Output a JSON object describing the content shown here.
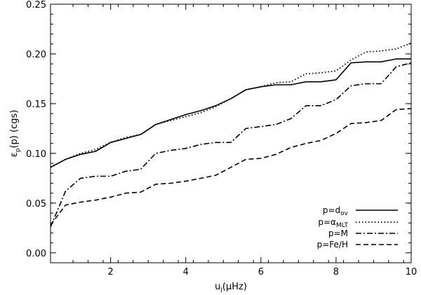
{
  "chart_data": {
    "type": "line",
    "title": "",
    "xlim": [
      0.4,
      10
    ],
    "ylim": [
      -0.01,
      0.25
    ],
    "x_ticks": [
      2,
      4,
      6,
      8,
      10
    ],
    "y_ticks": [
      0.0,
      0.05,
      0.1,
      0.15,
      0.2,
      0.25
    ],
    "x_tick_labels": [
      "2",
      "4",
      "6",
      "8",
      "10"
    ],
    "y_tick_labels": [
      "0.00",
      "0.05",
      "0.10",
      "0.15",
      "0.20",
      "0.25"
    ],
    "xlabel": {
      "base": "u",
      "sub": "l",
      "rest": "(μHz)"
    },
    "ylabel": {
      "base": "ε",
      "sub": "p",
      "rest": "(p)  (cgs)"
    },
    "legend_position": "bottom-right",
    "series": [
      {
        "name": {
          "prefix": "p=d",
          "sub": "ov"
        },
        "dash": "solid",
        "x": [
          0.4,
          0.8,
          1.2,
          1.6,
          2.0,
          2.4,
          2.8,
          3.2,
          3.6,
          4.0,
          4.4,
          4.8,
          5.2,
          5.6,
          6.0,
          6.4,
          6.8,
          7.2,
          7.6,
          8.0,
          8.4,
          8.8,
          9.2,
          9.6,
          10.0
        ],
        "y": [
          0.086,
          0.094,
          0.099,
          0.102,
          0.111,
          0.115,
          0.119,
          0.129,
          0.134,
          0.139,
          0.143,
          0.148,
          0.155,
          0.164,
          0.167,
          0.169,
          0.169,
          0.172,
          0.172,
          0.174,
          0.191,
          0.192,
          0.192,
          0.195,
          0.195
        ]
      },
      {
        "name": {
          "prefix": "p=α",
          "sub": "MLT"
        },
        "dash": "dotted",
        "x": [
          0.4,
          0.8,
          1.2,
          1.6,
          2.0,
          2.4,
          2.8,
          3.2,
          3.6,
          4.0,
          4.4,
          4.8,
          5.2,
          5.6,
          6.0,
          6.4,
          6.8,
          7.2,
          7.6,
          8.0,
          8.4,
          8.8,
          9.2,
          9.6,
          10.0
        ],
        "y": [
          0.086,
          0.094,
          0.1,
          0.104,
          0.111,
          0.116,
          0.119,
          0.129,
          0.133,
          0.137,
          0.141,
          0.147,
          0.155,
          0.164,
          0.167,
          0.171,
          0.172,
          0.18,
          0.181,
          0.183,
          0.194,
          0.202,
          0.203,
          0.205,
          0.211
        ]
      },
      {
        "name": {
          "prefix": "p=M",
          "sub": ""
        },
        "dash": "dashdot",
        "x": [
          0.4,
          0.8,
          1.2,
          1.6,
          2.0,
          2.4,
          2.8,
          3.2,
          3.6,
          4.0,
          4.4,
          4.8,
          5.2,
          5.6,
          6.0,
          6.4,
          6.8,
          7.2,
          7.6,
          8.0,
          8.4,
          8.8,
          9.2,
          9.6,
          10.0
        ],
        "y": [
          0.026,
          0.062,
          0.075,
          0.077,
          0.077,
          0.082,
          0.084,
          0.1,
          0.103,
          0.105,
          0.109,
          0.111,
          0.111,
          0.125,
          0.127,
          0.129,
          0.135,
          0.148,
          0.148,
          0.154,
          0.168,
          0.17,
          0.17,
          0.187,
          0.191
        ]
      },
      {
        "name": {
          "prefix": "p=Fe/H",
          "sub": ""
        },
        "dash": "dashed",
        "x": [
          0.4,
          0.8,
          1.2,
          1.6,
          2.0,
          2.4,
          2.8,
          3.2,
          3.6,
          4.0,
          4.4,
          4.8,
          5.2,
          5.6,
          6.0,
          6.4,
          6.8,
          7.2,
          7.6,
          8.0,
          8.4,
          8.8,
          9.2,
          9.6,
          10.0
        ],
        "y": [
          0.028,
          0.048,
          0.051,
          0.053,
          0.056,
          0.06,
          0.061,
          0.069,
          0.07,
          0.072,
          0.075,
          0.078,
          0.086,
          0.094,
          0.095,
          0.099,
          0.106,
          0.11,
          0.113,
          0.12,
          0.13,
          0.131,
          0.133,
          0.144,
          0.145
        ]
      }
    ]
  }
}
